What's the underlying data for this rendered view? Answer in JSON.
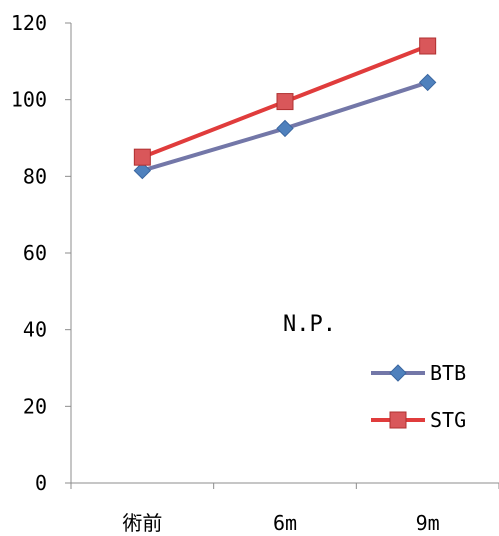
{
  "chart_data": {
    "type": "line",
    "title": "",
    "xlabel": "",
    "ylabel": "",
    "categories": [
      "術前",
      "6m",
      "9m"
    ],
    "ylim": [
      0,
      120
    ],
    "yticks": [
      0,
      20,
      40,
      60,
      80,
      100,
      120
    ],
    "grid": false,
    "legend_position": "bottom-right",
    "annotation": "N.P.",
    "series": [
      {
        "name": "BTB",
        "values": [
          81.5,
          92.5,
          104.5
        ],
        "color": "#7377A8",
        "marker": "diamond",
        "marker_color": "#4F81BD"
      },
      {
        "name": "STG",
        "values": [
          85,
          99.5,
          114
        ],
        "color": "#E03C3C",
        "marker": "square",
        "marker_color": "#D9575A"
      }
    ]
  }
}
